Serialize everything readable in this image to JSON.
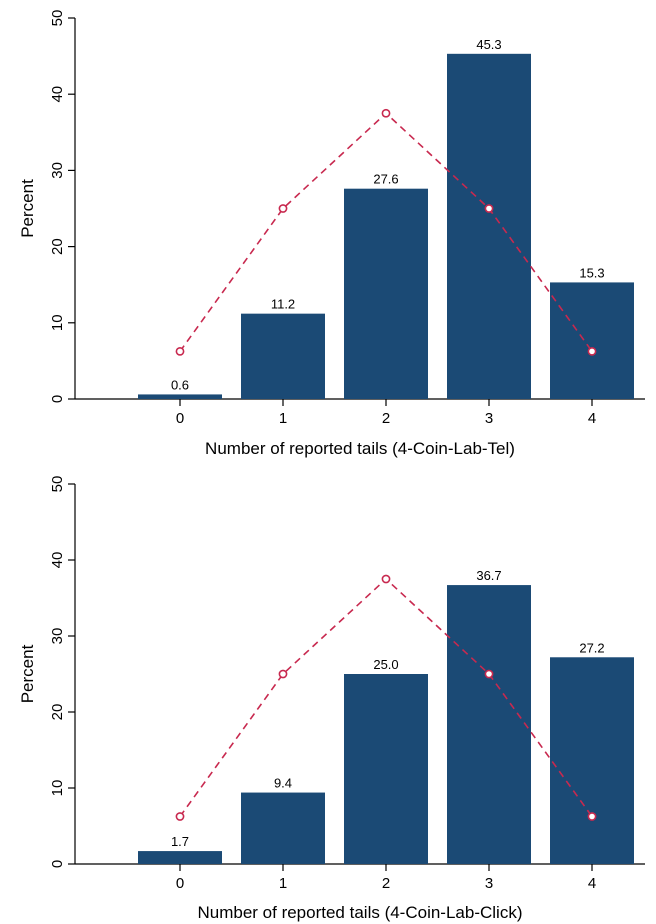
{
  "colors": {
    "bar": "#1b4a75",
    "expected_line": "#c8294f",
    "marker_fill": "#ffffff"
  },
  "chart_data": [
    {
      "type": "bar",
      "xlabel": "Number of reported tails (4-Coin-Lab-Tel)",
      "ylabel": "Percent",
      "ylim": [
        0,
        50
      ],
      "yticks": [
        0,
        10,
        20,
        30,
        40,
        50
      ],
      "categories": [
        "0",
        "1",
        "2",
        "3",
        "4"
      ],
      "series": [
        {
          "type": "bar",
          "values": [
            0.6,
            11.2,
            27.6,
            45.3,
            15.3
          ],
          "labels": [
            "0.6",
            "11.2",
            "27.6",
            "45.3",
            "15.3"
          ]
        },
        {
          "type": "line",
          "style": "dashed",
          "marker": "hollow-circle",
          "values": [
            6.25,
            25.0,
            37.5,
            25.0,
            6.25
          ]
        }
      ],
      "grid": false,
      "legend": "none"
    },
    {
      "type": "bar",
      "xlabel": "Number of reported tails (4-Coin-Lab-Click)",
      "ylabel": "Percent",
      "ylim": [
        0,
        50
      ],
      "yticks": [
        0,
        10,
        20,
        30,
        40,
        50
      ],
      "categories": [
        "0",
        "1",
        "2",
        "3",
        "4"
      ],
      "series": [
        {
          "type": "bar",
          "values": [
            1.7,
            9.4,
            25.0,
            36.7,
            27.2
          ],
          "labels": [
            "1.7",
            "9.4",
            "25.0",
            "36.7",
            "27.2"
          ]
        },
        {
          "type": "line",
          "style": "dashed",
          "marker": "hollow-circle",
          "values": [
            6.25,
            25.0,
            37.5,
            25.0,
            6.25
          ]
        }
      ],
      "grid": false,
      "legend": "none"
    }
  ]
}
